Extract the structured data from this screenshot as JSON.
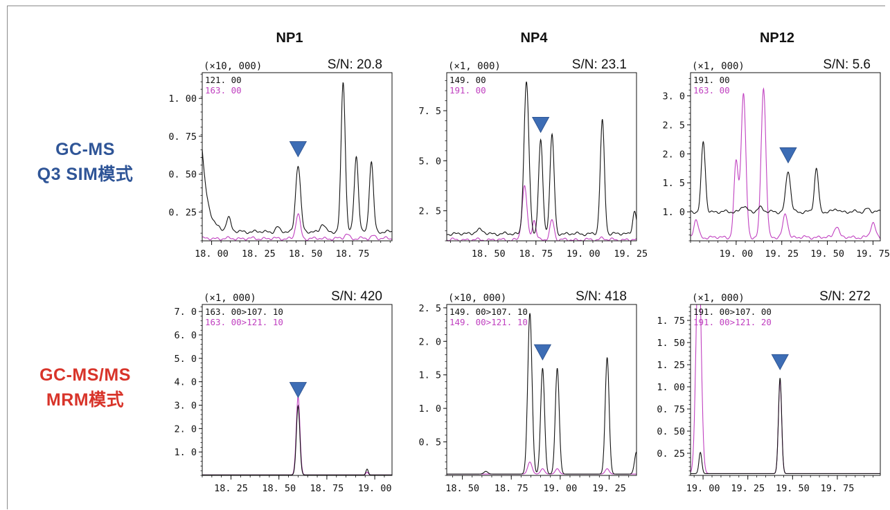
{
  "colors": {
    "black": "#111111",
    "magenta": "#c040c0",
    "marker": "#3d6db5",
    "sim_label": "#2f5597",
    "mrm_label": "#d8342a"
  },
  "column_titles": [
    "NP1",
    "NP4",
    "NP12"
  ],
  "row_labels": {
    "sim": {
      "line1": "GC-MS",
      "line2": "Q3 SIM模式"
    },
    "mrm": {
      "line1": "GC-MS/MS",
      "line2": "MRM模式"
    }
  },
  "chart_data": [
    {
      "type": "line",
      "compound": "NP1",
      "mode": "SIM",
      "scale_label": "(×10, 000)",
      "sn": "S/N: 20.8",
      "xlim": [
        17.95,
        18.96
      ],
      "ylim": [
        0.06,
        1.17
      ],
      "xticks": [
        18.0,
        18.25,
        18.5,
        18.75
      ],
      "xtick_labels": [
        "18. 00",
        "18. 25",
        "18. 50",
        "18. 75"
      ],
      "yticks": [
        0.25,
        0.5,
        0.75,
        1.0
      ],
      "ytick_labels": [
        "0. 25",
        "0. 50",
        "0. 75",
        "1. 00"
      ],
      "marker_x": 18.46,
      "series": [
        {
          "name": "121. 00",
          "color": "#111111",
          "baseline": 0.12,
          "start_rise": [
            0.55,
            0.03
          ],
          "peaks": [
            [
              18.09,
              0.09,
              0.012
            ],
            [
              18.35,
              0.03,
              0.01
            ],
            [
              18.46,
              0.44,
              0.013
            ],
            [
              18.59,
              0.05,
              0.012
            ],
            [
              18.7,
              0.99,
              0.011
            ],
            [
              18.77,
              0.5,
              0.011
            ],
            [
              18.85,
              0.46,
              0.011
            ]
          ]
        },
        {
          "name": "163. 00",
          "color": "#c040c0",
          "baseline": 0.075,
          "peaks": [
            [
              18.46,
              0.16,
              0.012
            ],
            [
              18.72,
              0.03,
              0.012
            ],
            [
              18.86,
              0.02,
              0.012
            ]
          ]
        }
      ]
    },
    {
      "type": "line",
      "compound": "NP4",
      "mode": "SIM",
      "scale_label": "(×1, 000)",
      "sn": "S/N: 23.1",
      "xlim": [
        18.28,
        19.28
      ],
      "ylim": [
        1.0,
        9.4
      ],
      "xticks": [
        18.5,
        18.75,
        19.0,
        19.25
      ],
      "xtick_labels": [
        "18. 50",
        "18. 75",
        "19. 00",
        "19. 25"
      ],
      "yticks": [
        2.5,
        5.0,
        7.5
      ],
      "ytick_labels": [
        "2. 5",
        "5. 0",
        "7. 5"
      ],
      "marker_x": 18.775,
      "series": [
        {
          "name": "149. 00",
          "color": "#111111",
          "baseline": 1.35,
          "peaks": [
            [
              18.7,
              7.55,
              0.013
            ],
            [
              18.775,
              4.65,
              0.011
            ],
            [
              18.835,
              4.9,
              0.011
            ],
            [
              19.1,
              5.65,
              0.011
            ],
            [
              19.27,
              1.15,
              0.01
            ],
            [
              18.45,
              0.2,
              0.02
            ]
          ]
        },
        {
          "name": "191. 00",
          "color": "#c040c0",
          "baseline": 1.05,
          "peaks": [
            [
              18.69,
              2.65,
              0.013
            ],
            [
              18.74,
              1.0,
              0.01
            ],
            [
              18.835,
              1.0,
              0.011
            ],
            [
              19.1,
              0.1,
              0.012
            ]
          ]
        }
      ]
    },
    {
      "type": "line",
      "compound": "NP12",
      "mode": "SIM",
      "scale_label": "(×1, 000)",
      "sn": "S/N: 5.6",
      "xlim": [
        18.75,
        19.79
      ],
      "ylim": [
        0.5,
        3.4
      ],
      "xticks": [
        19.0,
        19.25,
        19.5,
        19.75
      ],
      "xtick_labels": [
        "19. 00",
        "19. 25",
        "19. 50",
        "19. 75"
      ],
      "yticks": [
        1.0,
        1.5,
        2.0,
        2.5,
        3.0
      ],
      "ytick_labels": [
        "1. 0",
        "1. 5",
        "2. 0",
        "2. 5",
        "3. 0"
      ],
      "marker_x": 19.285,
      "series": [
        {
          "name": "191. 00",
          "color": "#111111",
          "baseline": 1.0,
          "peaks": [
            [
              18.82,
              1.2,
              0.011
            ],
            [
              19.04,
              0.1,
              0.015
            ],
            [
              19.13,
              0.08,
              0.015
            ],
            [
              19.285,
              0.7,
              0.013
            ],
            [
              19.44,
              0.75,
              0.011
            ],
            [
              19.55,
              0.05,
              0.012
            ],
            [
              19.72,
              0.06,
              0.012
            ]
          ]
        },
        {
          "name": "163. 00",
          "color": "#c040c0",
          "baseline": 0.56,
          "peaks": [
            [
              18.78,
              0.3,
              0.012
            ],
            [
              19.0,
              1.3,
              0.012
            ],
            [
              19.04,
              2.48,
              0.013
            ],
            [
              19.15,
              2.57,
              0.013
            ],
            [
              19.27,
              0.4,
              0.013
            ],
            [
              19.55,
              0.2,
              0.013
            ],
            [
              19.75,
              0.25,
              0.013
            ]
          ]
        }
      ]
    },
    {
      "type": "line",
      "compound": "NP1",
      "mode": "MRM",
      "scale_label": "(×1, 000)",
      "sn": "S/N: 420",
      "xlim": [
        18.1,
        19.09
      ],
      "ylim": [
        0.0,
        7.3
      ],
      "xticks": [
        18.25,
        18.5,
        18.75,
        19.0
      ],
      "xtick_labels": [
        "18. 25",
        "18. 50",
        "18. 75",
        "19. 00"
      ],
      "yticks": [
        1.0,
        2.0,
        3.0,
        4.0,
        5.0,
        6.0,
        7.0
      ],
      "ytick_labels": [
        "1. 0",
        "2. 0",
        "3. 0",
        "4. 0",
        "5. 0",
        "6. 0",
        "7. 0"
      ],
      "marker_x": 18.6,
      "series": [
        {
          "name": "163. 00>107. 10",
          "color": "#111111",
          "baseline": 0.02,
          "peaks": [
            [
              18.6,
              2.95,
              0.009
            ],
            [
              18.96,
              0.25,
              0.006
            ]
          ]
        },
        {
          "name": "163. 00>121. 10",
          "color": "#c040c0",
          "baseline": 0.02,
          "peaks": [
            [
              18.6,
              3.35,
              0.0095
            ],
            [
              18.96,
              0.12,
              0.006
            ]
          ]
        }
      ]
    },
    {
      "type": "line",
      "compound": "NP4",
      "mode": "MRM",
      "scale_label": "(×10, 000)",
      "sn": "S/N: 418",
      "xlim": [
        18.42,
        19.39
      ],
      "ylim": [
        0.0,
        2.55
      ],
      "xticks": [
        18.5,
        18.75,
        19.0,
        19.25
      ],
      "xtick_labels": [
        "18. 50",
        "18. 75",
        "19. 00",
        "19. 25"
      ],
      "yticks": [
        0.5,
        1.0,
        1.5,
        2.0,
        2.5
      ],
      "ytick_labels": [
        "0. 5",
        "1. 0",
        "1. 5",
        "2. 0",
        "2. 5"
      ],
      "marker_x": 18.91,
      "series": [
        {
          "name": "149. 00>107. 10",
          "color": "#111111",
          "baseline": 0.02,
          "peaks": [
            [
              18.845,
              2.4,
              0.011
            ],
            [
              18.91,
              1.58,
              0.01
            ],
            [
              18.985,
              1.58,
              0.01
            ],
            [
              19.24,
              1.74,
              0.01
            ],
            [
              19.39,
              0.33,
              0.01
            ],
            [
              18.62,
              0.04,
              0.01
            ]
          ]
        },
        {
          "name": "149. 00>121. 10",
          "color": "#c040c0",
          "baseline": 0.02,
          "peaks": [
            [
              18.845,
              0.18,
              0.011
            ],
            [
              18.91,
              0.08,
              0.01
            ],
            [
              18.985,
              0.08,
              0.01
            ],
            [
              19.24,
              0.08,
              0.01
            ]
          ]
        }
      ]
    },
    {
      "type": "line",
      "compound": "NP12",
      "mode": "MRM",
      "scale_label": "(×1, 000)",
      "sn": "S/N: 272",
      "xlim": [
        18.93,
        19.99
      ],
      "ylim": [
        0.0,
        1.93
      ],
      "xticks": [
        19.0,
        19.25,
        19.5,
        19.75
      ],
      "xtick_labels": [
        "19. 00",
        "19. 25",
        "19. 50",
        "19. 75"
      ],
      "yticks": [
        0.25,
        0.5,
        0.75,
        1.0,
        1.25,
        1.5,
        1.75
      ],
      "ytick_labels": [
        "0. 25",
        "0. 50",
        "0. 75",
        "1. 00",
        "1. 25",
        "1. 50",
        "1. 75"
      ],
      "marker_x": 19.43,
      "series": [
        {
          "name": "191. 00>107. 00",
          "color": "#111111",
          "baseline": 0.02,
          "peaks": [
            [
              18.985,
              0.24,
              0.008
            ],
            [
              19.43,
              1.08,
              0.009
            ]
          ]
        },
        {
          "name": "191. 00>121. 20",
          "color": "#c040c0",
          "baseline": 0.02,
          "peaks": [
            [
              18.975,
              2.6,
              0.014
            ],
            [
              19.43,
              1.05,
              0.009
            ]
          ]
        }
      ]
    }
  ]
}
